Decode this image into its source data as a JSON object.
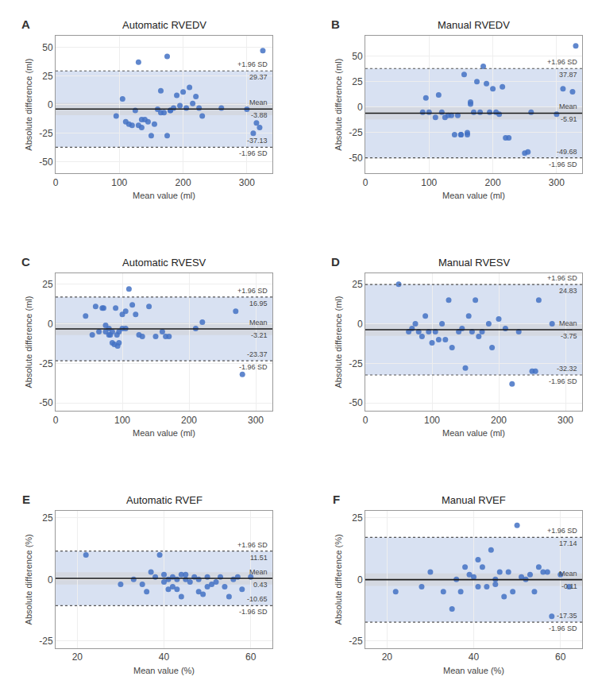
{
  "chart_data": [
    {
      "type": "scatter",
      "panel_label": "A",
      "title": "Automatic RVEDV",
      "xlabel": "Mean value (ml)",
      "ylabel": "Absolute difference (ml)",
      "xlim": [
        0,
        340
      ],
      "xticks": [
        0,
        100,
        200,
        300
      ],
      "ylim": [
        -60,
        60
      ],
      "yticks": [
        -50,
        -25,
        0,
        25,
        50
      ],
      "grid": true,
      "color": "#4472C4",
      "marker": "circle",
      "x": [
        95,
        105,
        110,
        115,
        120,
        125,
        130,
        130,
        135,
        135,
        140,
        145,
        150,
        155,
        160,
        165,
        165,
        170,
        175,
        175,
        180,
        180,
        185,
        190,
        195,
        200,
        205,
        210,
        215,
        220,
        225,
        230,
        260,
        300,
        310,
        315,
        320,
        325
      ],
      "values": [
        -10,
        5,
        -15,
        -17,
        -18,
        -5,
        37,
        -18,
        -20,
        -13,
        -13,
        -15,
        -27,
        -17,
        -4,
        -7,
        12,
        -7,
        42,
        -27,
        -5,
        -5,
        -3,
        8,
        -1,
        11,
        -3,
        15,
        1,
        7,
        -3,
        -10,
        -3,
        -4,
        -25,
        -16,
        -20,
        47
      ],
      "lines": [
        {
          "value": 29.37,
          "line_style": "dotted",
          "color": "#555555",
          "label_above": "+1.96 SD",
          "label_below": "29.37"
        },
        {
          "value": -3.88,
          "line_style": "solid",
          "color": "#1a1a1a",
          "label_above": "Mean",
          "label_below": "-3.88"
        },
        {
          "value": -37.13,
          "line_style": "dotted",
          "color": "#555555",
          "label_above": "-37.13",
          "label_below": "-1.96 SD"
        }
      ]
    },
    {
      "type": "scatter",
      "panel_label": "B",
      "title": "Manual RVEDV",
      "xlabel": "Mean value (ml)",
      "ylabel": "Absolute difference (ml)",
      "xlim": [
        0,
        340
      ],
      "xticks": [
        0,
        100,
        200,
        300
      ],
      "ylim": [
        -65,
        70
      ],
      "yticks": [
        -50,
        -25,
        0,
        25,
        50
      ],
      "grid": true,
      "color": "#4472C4",
      "marker": "circle",
      "x": [
        90,
        95,
        100,
        110,
        115,
        120,
        125,
        130,
        135,
        140,
        145,
        150,
        150,
        155,
        160,
        160,
        165,
        165,
        170,
        175,
        180,
        185,
        190,
        195,
        200,
        205,
        210,
        215,
        220,
        225,
        250,
        255,
        260,
        300,
        310,
        325,
        330
      ],
      "values": [
        -5,
        9,
        -5,
        -10,
        12,
        -5,
        -10,
        -8,
        -8,
        -27,
        -8,
        -27,
        -27,
        32,
        -25,
        -27,
        5,
        3,
        -5,
        25,
        -5,
        40,
        23,
        -5,
        18,
        -5,
        -7,
        20,
        -30,
        -30,
        -45,
        -44,
        -5,
        -7,
        18,
        15,
        60
      ],
      "lines": [
        {
          "value": 37.87,
          "line_style": "dotted",
          "color": "#555555",
          "label_above": "+1.96 SD",
          "label_below": "37.87"
        },
        {
          "value": -5.91,
          "line_style": "solid",
          "color": "#1a1a1a",
          "label_above": "Mean",
          "label_below": "-5.91"
        },
        {
          "value": -49.68,
          "line_style": "dotted",
          "color": "#555555",
          "label_above": "-49.68",
          "label_below": "-1.96 SD"
        }
      ]
    },
    {
      "type": "scatter",
      "panel_label": "C",
      "title": "Automatic RVESV",
      "xlabel": "Mean value (ml)",
      "ylabel": "Absolute difference (ml)",
      "xlim": [
        0,
        325
      ],
      "xticks": [
        0,
        100,
        200,
        300
      ],
      "ylim": [
        -55,
        32
      ],
      "yticks": [
        -50,
        -25,
        0,
        25
      ],
      "grid": true,
      "color": "#4472C4",
      "marker": "circle",
      "x": [
        45,
        55,
        60,
        65,
        70,
        72,
        75,
        75,
        80,
        80,
        82,
        85,
        85,
        88,
        90,
        92,
        93,
        95,
        95,
        100,
        100,
        105,
        105,
        110,
        115,
        120,
        125,
        130,
        140,
        150,
        160,
        165,
        170,
        210,
        220,
        270,
        280
      ],
      "values": [
        5,
        -7,
        11,
        -5,
        10,
        10,
        -1,
        -5,
        -3,
        -7,
        -7,
        -12,
        -5,
        -13,
        10,
        -7,
        -14,
        -5,
        -12,
        -3,
        6,
        -3,
        8,
        22,
        12,
        6,
        -7,
        -8,
        11,
        -8,
        -5,
        -8,
        -8,
        -3,
        1,
        8,
        -32
      ],
      "lines": [
        {
          "value": 16.95,
          "line_style": "dotted",
          "color": "#555555",
          "label_above": "+1.96 SD",
          "label_below": "16.95"
        },
        {
          "value": -3.21,
          "line_style": "solid",
          "color": "#1a1a1a",
          "label_above": "Mean",
          "label_below": "-3.21"
        },
        {
          "value": -23.37,
          "line_style": "dotted",
          "color": "#555555",
          "label_above": "-23.37",
          "label_below": "-1.96 SD"
        }
      ]
    },
    {
      "type": "scatter",
      "panel_label": "D",
      "title": "Manual RVESV",
      "xlabel": "Mean value (ml)",
      "ylabel": "Absolute difference (ml)",
      "xlim": [
        0,
        325
      ],
      "xticks": [
        0,
        100,
        200,
        300
      ],
      "ylim": [
        -55,
        32
      ],
      "yticks": [
        -50,
        -25,
        0,
        25
      ],
      "grid": true,
      "color": "#4472C4",
      "marker": "circle",
      "x": [
        50,
        65,
        70,
        75,
        80,
        85,
        90,
        95,
        100,
        105,
        110,
        115,
        120,
        125,
        130,
        140,
        145,
        150,
        155,
        160,
        165,
        170,
        175,
        185,
        190,
        200,
        210,
        220,
        230,
        250,
        255,
        260,
        280
      ],
      "values": [
        25,
        -5,
        -3,
        0,
        -5,
        -8,
        5,
        -5,
        -12,
        -5,
        -10,
        0,
        -10,
        15,
        -15,
        -5,
        -3,
        -28,
        5,
        -5,
        15,
        -8,
        -5,
        0,
        -15,
        3,
        -3,
        -38,
        -5,
        -30,
        -30,
        15,
        0
      ],
      "lines": [
        {
          "value": 24.83,
          "line_style": "dotted",
          "color": "#555555",
          "label_above": "+1.96 SD",
          "label_below": "24.83"
        },
        {
          "value": -3.75,
          "line_style": "solid",
          "color": "#1a1a1a",
          "label_above": "Mean",
          "label_below": "-3.75"
        },
        {
          "value": -32.32,
          "line_style": "dotted",
          "color": "#555555",
          "label_above": "-32.32",
          "label_below": "-1.96 SD"
        }
      ]
    },
    {
      "type": "scatter",
      "panel_label": "E",
      "title": "Automatic RVEF",
      "xlabel": "Mean value (%)",
      "ylabel": "Absolute difference (%)",
      "xlim": [
        15,
        65
      ],
      "xticks": [
        20,
        40,
        60
      ],
      "ylim": [
        -28,
        28
      ],
      "yticks": [
        -25,
        0,
        25
      ],
      "grid": true,
      "color": "#4472C4",
      "marker": "circle",
      "x": [
        22,
        30,
        33,
        35,
        36,
        37,
        38,
        39,
        40,
        40,
        41,
        41,
        42,
        42,
        43,
        43,
        44,
        44,
        45,
        45,
        46,
        47,
        48,
        48,
        49,
        50,
        50,
        51,
        52,
        53,
        54,
        55,
        56,
        57,
        58,
        60
      ],
      "values": [
        10,
        -2,
        0,
        -2,
        -5,
        3,
        1,
        10,
        -1,
        2,
        0,
        -4,
        1,
        -3,
        -4,
        0,
        2,
        -7,
        2,
        0,
        -1,
        1,
        0,
        -5,
        -6,
        1,
        -3,
        -2,
        -1,
        1,
        -3,
        -7,
        0,
        1,
        -4,
        1
      ],
      "lines": [
        {
          "value": 11.51,
          "line_style": "dotted",
          "color": "#555555",
          "label_above": "+1.96 SD",
          "label_below": "11.51"
        },
        {
          "value": 0.43,
          "line_style": "solid",
          "color": "#1a1a1a",
          "label_above": "Mean",
          "label_below": "0.43"
        },
        {
          "value": -10.65,
          "line_style": "dotted",
          "color": "#555555",
          "label_above": "-10.65",
          "label_below": "-1.96 SD"
        }
      ]
    },
    {
      "type": "scatter",
      "panel_label": "F",
      "title": "Manual RVEF",
      "xlabel": "Mean value (%)",
      "ylabel": "Absolute difference (%)",
      "xlim": [
        15,
        65
      ],
      "xticks": [
        20,
        40,
        60
      ],
      "ylim": [
        -28,
        28
      ],
      "yticks": [
        -25,
        0,
        25
      ],
      "grid": true,
      "color": "#4472C4",
      "marker": "circle",
      "x": [
        22,
        28,
        30,
        33,
        35,
        36,
        37,
        38,
        39,
        40,
        41,
        41,
        42,
        43,
        44,
        45,
        45,
        46,
        47,
        48,
        49,
        50,
        51,
        52,
        53,
        54,
        55,
        56,
        57,
        58,
        60,
        62
      ],
      "values": [
        -5,
        -3,
        3,
        -5,
        -12,
        0,
        -5,
        5,
        2,
        1,
        -3,
        8,
        5,
        -3,
        12,
        0,
        -2,
        3,
        -7,
        3,
        -5,
        22,
        1,
        0,
        2,
        -5,
        5,
        3,
        3,
        -15,
        2,
        -3
      ],
      "lines": [
        {
          "value": 17.14,
          "line_style": "dotted",
          "color": "#555555",
          "label_above": "+1.96 SD",
          "label_below": "17.14"
        },
        {
          "value": -0.11,
          "line_style": "solid",
          "color": "#1a1a1a",
          "label_above": "Mean",
          "label_below": "-0.11"
        },
        {
          "value": -17.35,
          "line_style": "dotted",
          "color": "#555555",
          "label_above": "-17.35",
          "label_below": "-1.96 SD"
        }
      ]
    }
  ]
}
